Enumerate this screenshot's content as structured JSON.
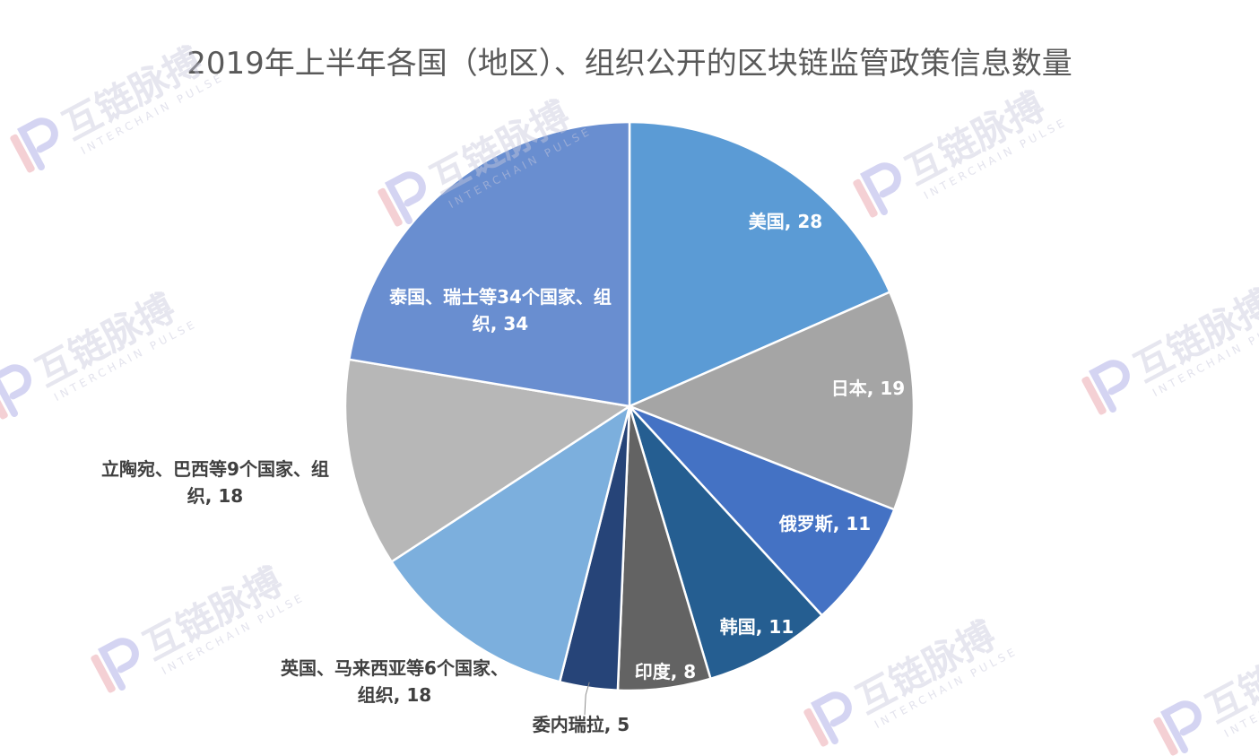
{
  "chart_data": {
    "type": "pie",
    "title": "2019年上半年各国（地区）、组织公开的区块链监管政策信息数量",
    "slices": [
      {
        "label": "美国",
        "value": 28,
        "color": "#5B9BD5",
        "label_color": "#ffffff"
      },
      {
        "label": "日本",
        "value": 19,
        "color": "#A5A5A5",
        "label_color": "#ffffff"
      },
      {
        "label": "俄罗斯",
        "value": 11,
        "color": "#4472C4",
        "label_color": "#ffffff"
      },
      {
        "label": "韩国",
        "value": 11,
        "color": "#255E91",
        "label_color": "#ffffff"
      },
      {
        "label": "印度",
        "value": 8,
        "color": "#636363",
        "label_color": "#ffffff"
      },
      {
        "label": "委内瑞拉",
        "value": 5,
        "color": "#264478",
        "label_color": "#404040"
      },
      {
        "label": "英国、马来西亚等6个国家、组织",
        "value": 18,
        "color": "#7CAFDD",
        "label_color": "#404040"
      },
      {
        "label": "立陶宛、巴西等9个国家、组织",
        "value": 18,
        "color": "#B7B7B7",
        "label_color": "#404040"
      },
      {
        "label": "泰国、瑞士等34个国家、组织",
        "value": 34,
        "color": "#698ED0",
        "label_color": "#ffffff"
      }
    ],
    "start_angle_deg": 0,
    "direction": "clockwise",
    "legend": "none"
  },
  "watermark": {
    "cn": "互链脉搏",
    "en": "INTERCHAIN PULSE",
    "logo_icon": "interchain-pulse-logo-icon"
  }
}
